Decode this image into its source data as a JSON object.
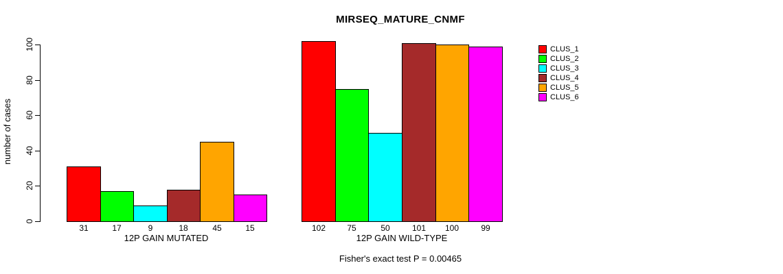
{
  "chart_data": {
    "type": "bar",
    "title": "MIRSEQ_MATURE_CNMF",
    "ylabel": "number of cases",
    "xlabel": "",
    "ylim": [
      0,
      100
    ],
    "yticks": [
      0,
      20,
      40,
      60,
      80,
      100
    ],
    "grid": false,
    "legend_position": "right",
    "categories": [
      "12P GAIN MUTATED",
      "12P GAIN WILD-TYPE"
    ],
    "series": [
      {
        "name": "CLUS_1",
        "color": "#FF0000",
        "values": [
          31,
          102
        ]
      },
      {
        "name": "CLUS_2",
        "color": "#00FF00",
        "values": [
          17,
          75
        ]
      },
      {
        "name": "CLUS_3",
        "color": "#00FFFF",
        "values": [
          9,
          50
        ]
      },
      {
        "name": "CLUS_4",
        "color": "#A52A2A",
        "values": [
          18,
          101
        ]
      },
      {
        "name": "CLUS_5",
        "color": "#FFA500",
        "values": [
          45,
          100
        ]
      },
      {
        "name": "CLUS_6",
        "color": "#FF00FF",
        "values": [
          15,
          99
        ]
      }
    ],
    "bar_value_labels_shown": true,
    "annotation": "Fisher's exact test P = 0.00465"
  }
}
